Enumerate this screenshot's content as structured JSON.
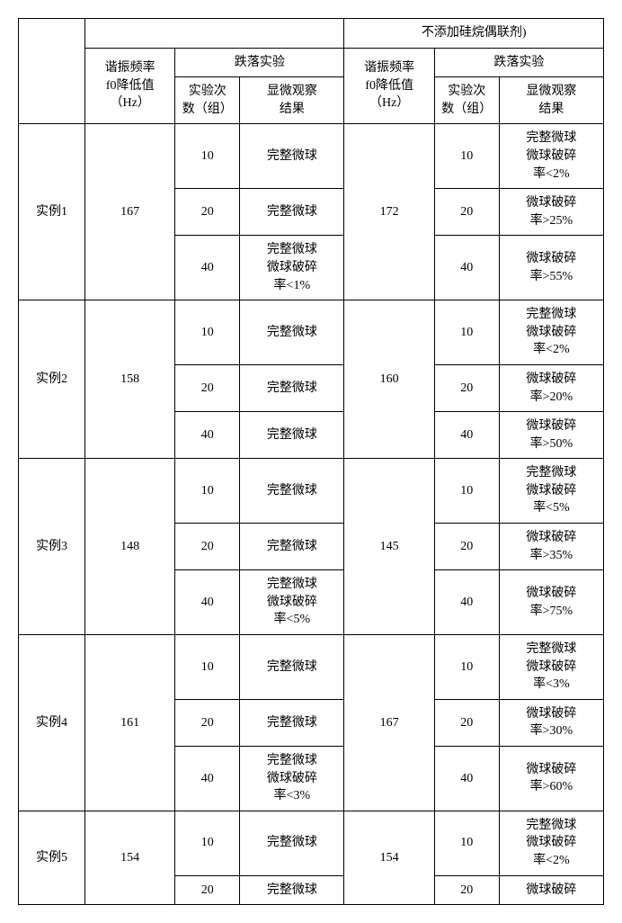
{
  "header": {
    "group_b_title": "不添加硅烷偶联剂)",
    "freq_label_l1": "谐振频率",
    "freq_label_l2": "f0降低值",
    "freq_label_l3": "（Hz）",
    "drop_test": "跌落实验",
    "count_label_l1": "实验次",
    "count_label_l2": "数（组）",
    "obs_label_l1": "显微观察",
    "obs_label_l2": "结果"
  },
  "rows": [
    {
      "label": "实例1",
      "freq_a": "167",
      "freq_b": "172",
      "tests": [
        {
          "count": "10",
          "obs_a": "完整微球",
          "obs_b": "完整微球\n微球破碎\n率<2%"
        },
        {
          "count": "20",
          "obs_a": "完整微球",
          "obs_b": "微球破碎\n率>25%"
        },
        {
          "count": "40",
          "obs_a": "完整微球\n微球破碎\n率<1%",
          "obs_b": "微球破碎\n率>55%"
        }
      ]
    },
    {
      "label": "实例2",
      "freq_a": "158",
      "freq_b": "160",
      "tests": [
        {
          "count": "10",
          "obs_a": "完整微球",
          "obs_b": "完整微球\n微球破碎\n率<2%"
        },
        {
          "count": "20",
          "obs_a": "完整微球",
          "obs_b": "微球破碎\n率>20%"
        },
        {
          "count": "40",
          "obs_a": "完整微球",
          "obs_b": "微球破碎\n率>50%"
        }
      ]
    },
    {
      "label": "实例3",
      "freq_a": "148",
      "freq_b": "145",
      "tests": [
        {
          "count": "10",
          "obs_a": "完整微球",
          "obs_b": "完整微球\n微球破碎\n率<5%"
        },
        {
          "count": "20",
          "obs_a": "完整微球",
          "obs_b": "微球破碎\n率>35%"
        },
        {
          "count": "40",
          "obs_a": "完整微球\n微球破碎\n率<5%",
          "obs_b": "微球破碎\n率>75%"
        }
      ]
    },
    {
      "label": "实例4",
      "freq_a": "161",
      "freq_b": "167",
      "tests": [
        {
          "count": "10",
          "obs_a": "完整微球",
          "obs_b": "完整微球\n微球破碎\n率<3%"
        },
        {
          "count": "20",
          "obs_a": "完整微球",
          "obs_b": "微球破碎\n率>30%"
        },
        {
          "count": "40",
          "obs_a": "完整微球\n微球破碎\n率<3%",
          "obs_b": "微球破碎\n率>60%"
        }
      ]
    },
    {
      "label": "实例5",
      "freq_a": "154",
      "freq_b": "154",
      "tests": [
        {
          "count": "10",
          "obs_a": "完整微球",
          "obs_b": "完整微球\n微球破碎\n率<2%"
        },
        {
          "count": "20",
          "obs_a": "完整微球",
          "obs_b": "微球破碎"
        }
      ]
    }
  ]
}
